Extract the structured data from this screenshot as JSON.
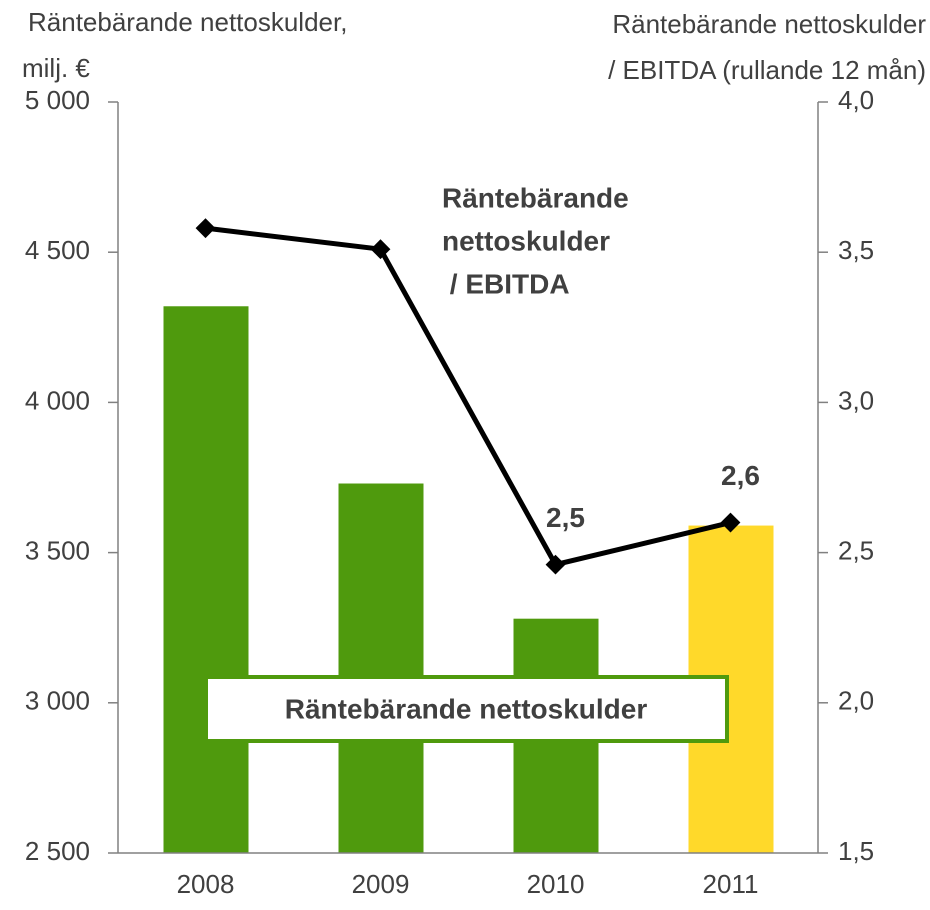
{
  "chart_data": {
    "type": "bar_line",
    "ylabel": [
      "Räntebärande nettoskulder,",
      "milj. €"
    ],
    "y2label": [
      "Räntebärande nettoskulder",
      "/ EBITDA (rullande 12 mån)"
    ],
    "categories": [
      "2008",
      "2009",
      "2010",
      "2011"
    ],
    "series": [
      {
        "name": "Räntebärande nettoskulder",
        "type": "bar",
        "colors": [
          "#4f9a0d",
          "#4f9a0d",
          "#4f9a0d",
          "#ffd92a"
        ],
        "values": [
          4320,
          3730,
          3280,
          3590
        ]
      },
      {
        "type": "line",
        "axis": "y2",
        "color": "#000000",
        "values": [
          3.58,
          3.51,
          2.46,
          2.6
        ],
        "value_labels": [
          null,
          null,
          "2,5",
          "2,6"
        ]
      }
    ],
    "annotation": [
      "Räntebärande",
      "nettoskulder",
      " / EBITDA"
    ],
    "ylim": [
      2500,
      5000
    ],
    "yticks": [
      {
        "value": 2500,
        "label": "2 500"
      },
      {
        "value": 3000,
        "label": "3 000"
      },
      {
        "value": 3500,
        "label": "3 500"
      },
      {
        "value": 4000,
        "label": "4 000"
      },
      {
        "value": 4500,
        "label": "4 500"
      },
      {
        "value": 5000,
        "label": "5 000"
      }
    ],
    "y2lim": [
      1.5,
      4.0
    ],
    "y2ticks": [
      {
        "value": 1.5,
        "label": "1,5"
      },
      {
        "value": 2.0,
        "label": "2,0"
      },
      {
        "value": 2.5,
        "label": "2,5"
      },
      {
        "value": 3.0,
        "label": "3,0"
      },
      {
        "value": 3.5,
        "label": "3,5"
      },
      {
        "value": 4.0,
        "label": "4,0"
      }
    ]
  }
}
